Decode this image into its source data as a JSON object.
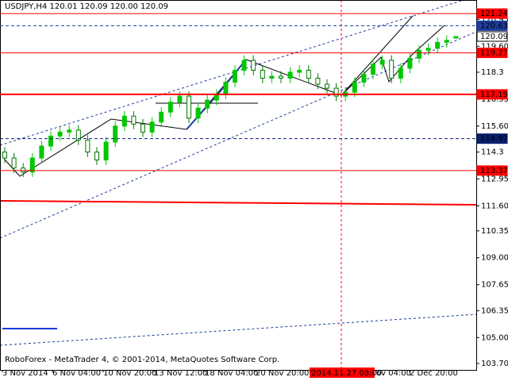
{
  "chart_data": {
    "type": "candlestick",
    "title": "USDJPY,H4  120.01 120.09 120.00 120.09",
    "footer": "RoboForex - MetaTrader 4, © 2001-2014, MetaQuotes Software Corp.",
    "categories": [
      "3 Nov 2014",
      "6 Nov 04:00",
      "10 Nov 20:00",
      "13 Nov 12:00",
      "18 Nov 04:00",
      "20 Nov 20:00",
      "2014.11.27 08:00",
      "ov 04:00",
      "2 Dec 20:00"
    ],
    "highlight_category": 6,
    "up_color": "#00c800",
    "down_color": "#007a00",
    "open": [
      114.3,
      114.0,
      113.5,
      113.3,
      114.0,
      114.6,
      115.1,
      115.3,
      115.4,
      114.9,
      114.3,
      113.9,
      114.8,
      115.6,
      116.1,
      115.7,
      115.3,
      115.8,
      116.3,
      116.8,
      117.1,
      116.0,
      116.5,
      116.9,
      117.2,
      117.8,
      118.4,
      118.9,
      118.4,
      118.0,
      118.1,
      118.0,
      118.3,
      118.4,
      118.0,
      117.7,
      117.5,
      117.1,
      117.3,
      117.8,
      118.2,
      118.7,
      118.9,
      118.0,
      118.5,
      119.0,
      119.4,
      119.5,
      119.8,
      120.01
    ],
    "high": [
      114.55,
      114.25,
      113.75,
      114.25,
      114.85,
      115.35,
      115.55,
      115.65,
      115.65,
      115.15,
      114.55,
      115.05,
      115.85,
      116.35,
      116.35,
      115.95,
      116.05,
      116.55,
      117.05,
      117.35,
      117.35,
      116.75,
      117.15,
      117.45,
      118.05,
      118.65,
      119.15,
      119.15,
      118.65,
      118.35,
      118.35,
      118.55,
      118.65,
      118.65,
      118.25,
      117.95,
      117.75,
      117.55,
      118.05,
      118.45,
      118.95,
      119.15,
      119.15,
      118.75,
      119.25,
      119.65,
      119.75,
      120.05,
      120.15,
      120.09
    ],
    "low": [
      113.75,
      113.25,
      113.05,
      113.05,
      113.75,
      114.35,
      114.85,
      115.05,
      114.65,
      114.05,
      113.65,
      113.65,
      114.55,
      115.35,
      115.45,
      115.05,
      115.05,
      115.55,
      116.05,
      116.55,
      115.75,
      115.75,
      116.25,
      116.65,
      116.95,
      117.55,
      118.15,
      118.15,
      117.75,
      117.75,
      117.75,
      117.75,
      118.05,
      117.75,
      117.45,
      117.25,
      116.85,
      116.85,
      117.05,
      117.55,
      117.95,
      118.45,
      117.75,
      117.75,
      118.25,
      118.75,
      119.15,
      119.25,
      119.55,
      120.0
    ],
    "close": [
      114.0,
      113.5,
      113.3,
      114.0,
      114.6,
      115.1,
      115.3,
      115.4,
      114.9,
      114.3,
      113.9,
      114.8,
      115.6,
      116.1,
      115.7,
      115.3,
      115.8,
      116.3,
      116.8,
      117.1,
      116.0,
      116.5,
      116.9,
      117.2,
      117.8,
      118.4,
      118.9,
      118.4,
      118.0,
      118.1,
      118.0,
      118.3,
      118.4,
      118.0,
      117.7,
      117.5,
      117.1,
      117.3,
      117.8,
      118.2,
      118.7,
      118.9,
      118.0,
      118.5,
      119.0,
      119.4,
      119.5,
      119.8,
      119.9,
      120.09
    ],
    "ylim": [
      103.38,
      121.92
    ],
    "yticks": [
      120.95,
      {
        "value": 119.6,
        "label": "119.60"
      },
      118.3,
      116.95,
      {
        "value": 115.6,
        "label": "115.60"
      },
      114.3,
      112.95,
      {
        "value": 111.6,
        "label": "111.60"
      },
      110.35,
      {
        "value": 109,
        "label": "109.00"
      },
      107.65,
      106.35,
      {
        "value": 105,
        "label": "105.00"
      },
      {
        "value": 103.7,
        "label": "103.70"
      }
    ],
    "levels": [
      {
        "value": 121.24,
        "color": "#ff0000",
        "style": "solid"
      },
      {
        "value": 120.63,
        "color": "#1e3c9c",
        "style": "dashed"
      },
      {
        "value": 119.27,
        "color": "#ff0000",
        "style": "solid"
      },
      {
        "value": 117.19,
        "color": "#ff0000",
        "style": "thick"
      },
      {
        "value": 114.97,
        "color": "#0a1f6e",
        "style": "dashed"
      },
      {
        "value": 113.37,
        "color": "#ff0000",
        "style": "solid"
      },
      {
        "value": 120.09,
        "color": "#000000",
        "style": "current"
      }
    ]
  }
}
